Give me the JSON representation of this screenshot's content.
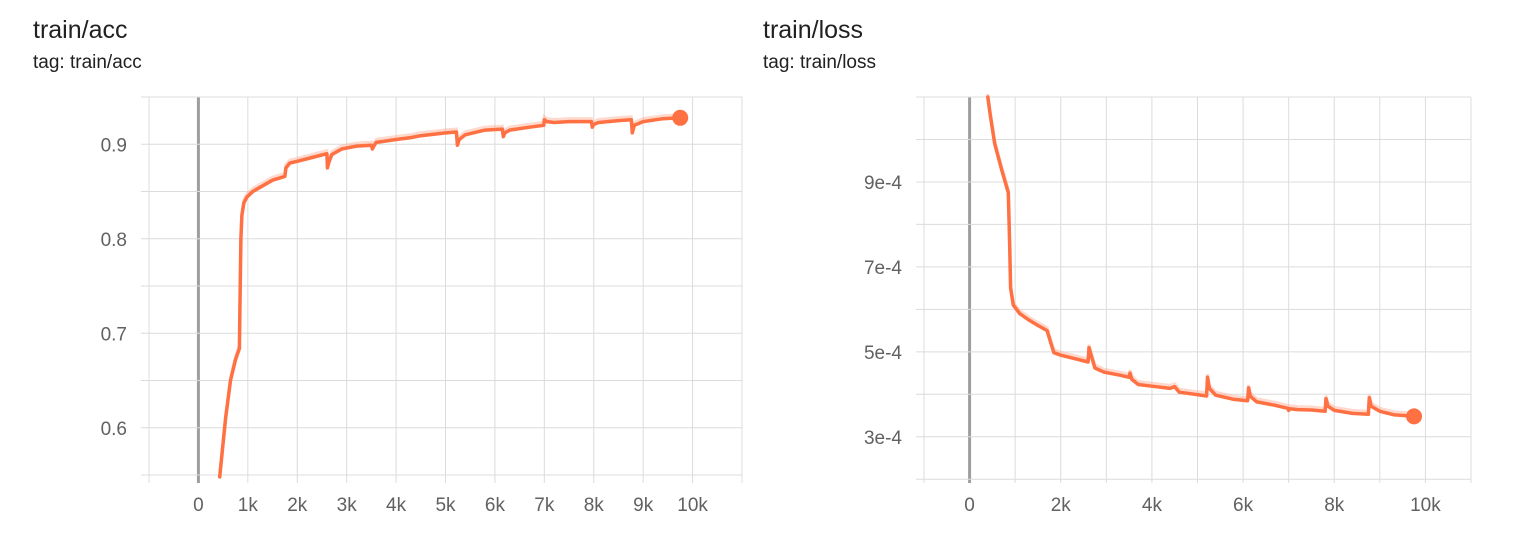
{
  "colors": {
    "series": "#ff7043",
    "raw": "#ffab91",
    "grid": "#dcdcdc",
    "zero_line": "#9e9e9e",
    "text": "#212121",
    "tick_text": "#616161"
  },
  "chart_data": [
    {
      "type": "line",
      "title": "train/acc",
      "tag": "tag: train/acc",
      "xlabel": "",
      "ylabel": "",
      "xlim": [
        -1000,
        11000
      ],
      "ylim": [
        0.55,
        0.95
      ],
      "x_ticks": [
        0,
        1000,
        2000,
        3000,
        4000,
        5000,
        6000,
        7000,
        8000,
        9000,
        10000
      ],
      "x_tick_labels": [
        "0",
        "1k",
        "2k",
        "3k",
        "4k",
        "5k",
        "6k",
        "7k",
        "8k",
        "9k",
        "10k"
      ],
      "y_ticks": [
        0.6,
        0.7,
        0.8,
        0.9
      ],
      "y_tick_labels": [
        "0.6",
        "0.7",
        "0.8",
        "0.9"
      ],
      "grid": true,
      "legend": "none",
      "series": [
        {
          "x": [
            430,
            550,
            650,
            750,
            830,
            840,
            860,
            880,
            920,
            980,
            1100,
            1300,
            1500,
            1750,
            1770,
            1850,
            2000,
            2300,
            2600,
            2610,
            2640,
            2700,
            2900,
            3200,
            3500,
            3520,
            3560,
            3600,
            4000,
            4300,
            4500,
            5000,
            5220,
            5240,
            5280,
            5400,
            5800,
            6150,
            6170,
            6200,
            6300,
            6700,
            6990,
            7000,
            7050,
            7200,
            7500,
            7950,
            7970,
            8000,
            8100,
            8500,
            8760,
            8780,
            8820,
            9000,
            9400,
            9750
          ],
          "y": [
            0.548,
            0.61,
            0.65,
            0.672,
            0.684,
            0.725,
            0.8,
            0.825,
            0.838,
            0.844,
            0.85,
            0.856,
            0.862,
            0.866,
            0.875,
            0.88,
            0.882,
            0.886,
            0.89,
            0.875,
            0.881,
            0.889,
            0.895,
            0.898,
            0.899,
            0.895,
            0.899,
            0.902,
            0.905,
            0.907,
            0.909,
            0.912,
            0.913,
            0.899,
            0.905,
            0.91,
            0.915,
            0.916,
            0.908,
            0.912,
            0.915,
            0.918,
            0.92,
            0.926,
            0.924,
            0.923,
            0.924,
            0.924,
            0.918,
            0.921,
            0.923,
            0.925,
            0.926,
            0.912,
            0.92,
            0.924,
            0.927,
            0.928
          ]
        }
      ]
    },
    {
      "type": "line",
      "title": "train/loss",
      "tag": "tag: train/loss",
      "xlabel": "",
      "ylabel": "",
      "xlim": [
        -1000,
        11000
      ],
      "ylim": [
        0.00021,
        0.0011
      ],
      "x_ticks": [
        0,
        2000,
        4000,
        6000,
        8000,
        10000
      ],
      "x_tick_labels": [
        "0",
        "2k",
        "4k",
        "6k",
        "8k",
        "10k"
      ],
      "y_ticks": [
        0.0003,
        0.0005,
        0.0007,
        0.0009
      ],
      "y_tick_labels": [
        "3e-4",
        "5e-4",
        "7e-4",
        "9e-4"
      ],
      "grid": true,
      "legend": "none",
      "series": [
        {
          "x": [
            400,
            450,
            550,
            700,
            850,
            880,
            900,
            960,
            1100,
            1300,
            1500,
            1700,
            1800,
            1850,
            2000,
            2300,
            2600,
            2620,
            2660,
            2750,
            2950,
            3300,
            3500,
            3520,
            3560,
            3700,
            4000,
            4400,
            4500,
            4600,
            5000,
            5200,
            5220,
            5260,
            5400,
            5800,
            6100,
            6120,
            6160,
            6300,
            6700,
            6980,
            7000,
            7020,
            7200,
            7500,
            7800,
            7820,
            7860,
            8000,
            8400,
            8750,
            8770,
            8810,
            9000,
            9300,
            9750
          ],
          "y": [
            0.0011,
            0.00106,
            0.00099,
            0.00093,
            0.000875,
            0.00075,
            0.00065,
            0.00061,
            0.00059,
            0.000575,
            0.000562,
            0.00055,
            0.000515,
            0.000498,
            0.000492,
            0.000484,
            0.000476,
            0.00051,
            0.000495,
            0.000462,
            0.000452,
            0.000445,
            0.00044,
            0.00045,
            0.000435,
            0.000423,
            0.000419,
            0.000414,
            0.000418,
            0.000405,
            0.000399,
            0.000396,
            0.00044,
            0.000414,
            0.000398,
            0.000388,
            0.000385,
            0.000415,
            0.000395,
            0.000382,
            0.000374,
            0.000367,
            0.000362,
            0.000366,
            0.000364,
            0.000363,
            0.00036,
            0.00039,
            0.000372,
            0.000362,
            0.000355,
            0.000353,
            0.000392,
            0.000372,
            0.00036,
            0.000352,
            0.000348
          ]
        }
      ]
    }
  ]
}
